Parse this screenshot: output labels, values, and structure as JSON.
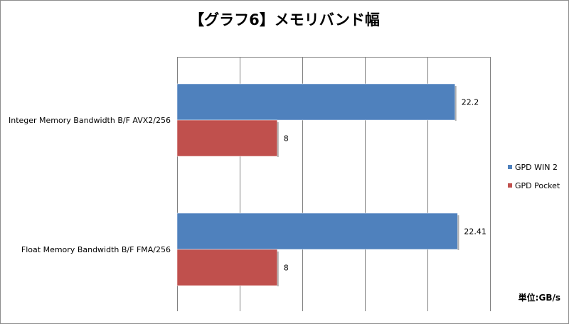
{
  "chart_data": {
    "type": "bar",
    "orientation": "horizontal",
    "title": "【グラフ6】メモリバンド幅",
    "unit_label": "単位:GB/s",
    "categories": [
      "Integer Memory Bandwidth B/F AVX2/256",
      "Float Memory Bandwidth B/F FMA/256"
    ],
    "series": [
      {
        "name": "GPD WIN 2",
        "color": "#4f81bd",
        "values": [
          22.2,
          22.41
        ]
      },
      {
        "name": "GPD Pocket",
        "color": "#c0504d",
        "values": [
          8,
          8
        ]
      }
    ],
    "value_labels": [
      [
        "22.2",
        "22.41"
      ],
      [
        "8",
        "8"
      ]
    ],
    "xlim": [
      0,
      25
    ],
    "grid": true,
    "legend": "right"
  }
}
